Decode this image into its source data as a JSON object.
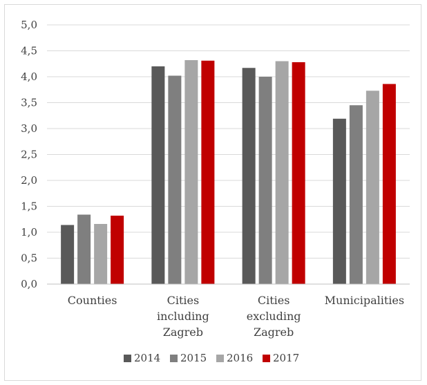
{
  "chart_data": {
    "type": "bar",
    "categories": [
      [
        "Counties"
      ],
      [
        "Cities",
        "including",
        "Zagreb"
      ],
      [
        "Cities",
        "excluding",
        "Zagreb"
      ],
      [
        "Municipalities"
      ]
    ],
    "series": [
      {
        "name": "2014",
        "color": "#595959",
        "values": [
          1.14,
          4.2,
          4.17,
          3.19
        ]
      },
      {
        "name": "2015",
        "color": "#7f7f7f",
        "values": [
          1.34,
          4.02,
          4.0,
          3.45
        ]
      },
      {
        "name": "2016",
        "color": "#a6a6a6",
        "values": [
          1.16,
          4.32,
          4.3,
          3.73
        ]
      },
      {
        "name": "2017",
        "color": "#c00000",
        "values": [
          1.32,
          4.31,
          4.28,
          3.86
        ]
      }
    ],
    "ylim": [
      0,
      5
    ],
    "yticks": [
      "0,0",
      "0,5",
      "1,0",
      "1,5",
      "2,0",
      "2,5",
      "3,0",
      "3,5",
      "4,0",
      "4,5",
      "5,0"
    ],
    "grid": true,
    "legend": "bottom"
  }
}
